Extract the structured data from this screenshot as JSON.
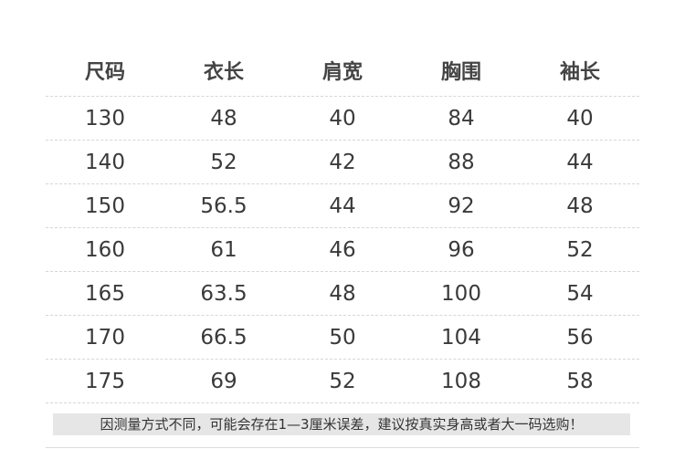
{
  "headers": [
    "尺码",
    "衣长",
    "肩宽",
    "胸围",
    "袖长"
  ],
  "rows": [
    [
      "130",
      "48",
      "40",
      "84",
      "40"
    ],
    [
      "140",
      "52",
      "42",
      "88",
      "44"
    ],
    [
      "150",
      "56.5",
      "44",
      "92",
      "48"
    ],
    [
      "160",
      "61",
      "46",
      "96",
      "52"
    ],
    [
      "165",
      "63.5",
      "48",
      "100",
      "54"
    ],
    [
      "170",
      "66.5",
      "50",
      "104",
      "56"
    ],
    [
      "175",
      "69",
      "52",
      "108",
      "58"
    ]
  ],
  "note": "因测量方式不同，可能会存在1—3厘米误差，建议按真实身高或者大一码选购！"
}
